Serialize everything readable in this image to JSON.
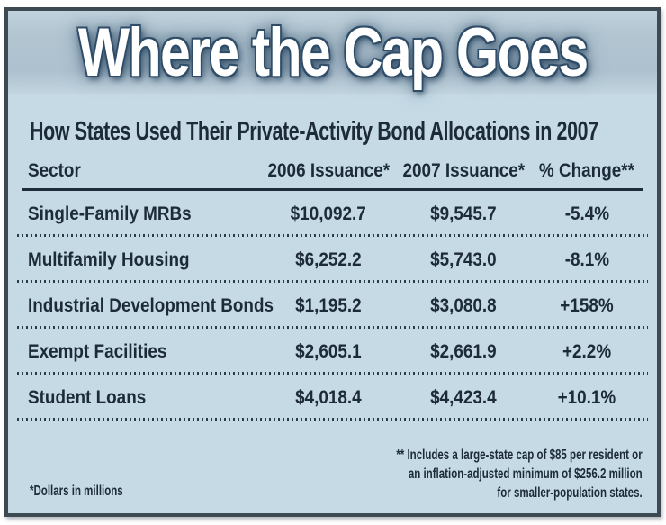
{
  "banner": {
    "title": "Where the Cap Goes"
  },
  "subtitle": "How States Used Their Private-Activity Bond Allocations in 2007",
  "table": {
    "headers": {
      "sector": "Sector",
      "y2006": "2006 Issuance*",
      "y2007": "2007 Issuance*",
      "change": "% Change**"
    },
    "rows": [
      {
        "sector": "Single-Family MRBs",
        "y2006": "$10,092.7",
        "y2007": "$9,545.7",
        "change": "-5.4%"
      },
      {
        "sector": "Multifamily Housing",
        "y2006": "$6,252.2",
        "y2007": "$5,743.0",
        "change": "-8.1%"
      },
      {
        "sector": "Industrial Development Bonds",
        "y2006": "$1,195.2",
        "y2007": "$3,080.8",
        "change": "+158%"
      },
      {
        "sector": "Exempt Facilities",
        "y2006": "$2,605.1",
        "y2007": "$2,661.9",
        "change": "+2.2%"
      },
      {
        "sector": "Student Loans",
        "y2006": "$4,018.4",
        "y2007": "$4,423.4",
        "change": "+10.1%"
      }
    ]
  },
  "footnotes": {
    "dollars_note": "*Dollars in millions",
    "cap_note_lines": [
      "** Includes a large-state cap of $85 per resident or",
      "an inflation-adjusted minimum of $256.2 million",
      "for smaller-population states."
    ]
  },
  "colors": {
    "body_bg": "#c5dae5",
    "banner_bg": "#b0c3d0",
    "frame_border": "#3e4a52",
    "text": "#1d2b38",
    "title_text": "#ffffff",
    "title_outline": "#2f4d68"
  },
  "chart_data": {
    "type": "table",
    "title": "Where the Cap Goes",
    "subtitle": "How States Used Their Private-Activity Bond Allocations in 2007",
    "units": "Dollars in millions",
    "columns": [
      "Sector",
      "2006 Issuance*",
      "2007 Issuance*",
      "% Change**"
    ],
    "categories": [
      "Single-Family MRBs",
      "Multifamily Housing",
      "Industrial Development Bonds",
      "Exempt Facilities",
      "Student Loans"
    ],
    "series": [
      {
        "name": "2006 Issuance",
        "values": [
          10092.7,
          6252.2,
          1195.2,
          2605.1,
          4018.4
        ]
      },
      {
        "name": "2007 Issuance",
        "values": [
          9545.7,
          5743.0,
          3080.8,
          2661.9,
          4423.4
        ]
      },
      {
        "name": "% Change",
        "values": [
          -5.4,
          -8.1,
          158,
          2.2,
          10.1
        ]
      }
    ],
    "notes": [
      "*Dollars in millions",
      "** Includes a large-state cap of $85 per resident or an inflation-adjusted minimum of $256.2 million for smaller-population states."
    ]
  }
}
